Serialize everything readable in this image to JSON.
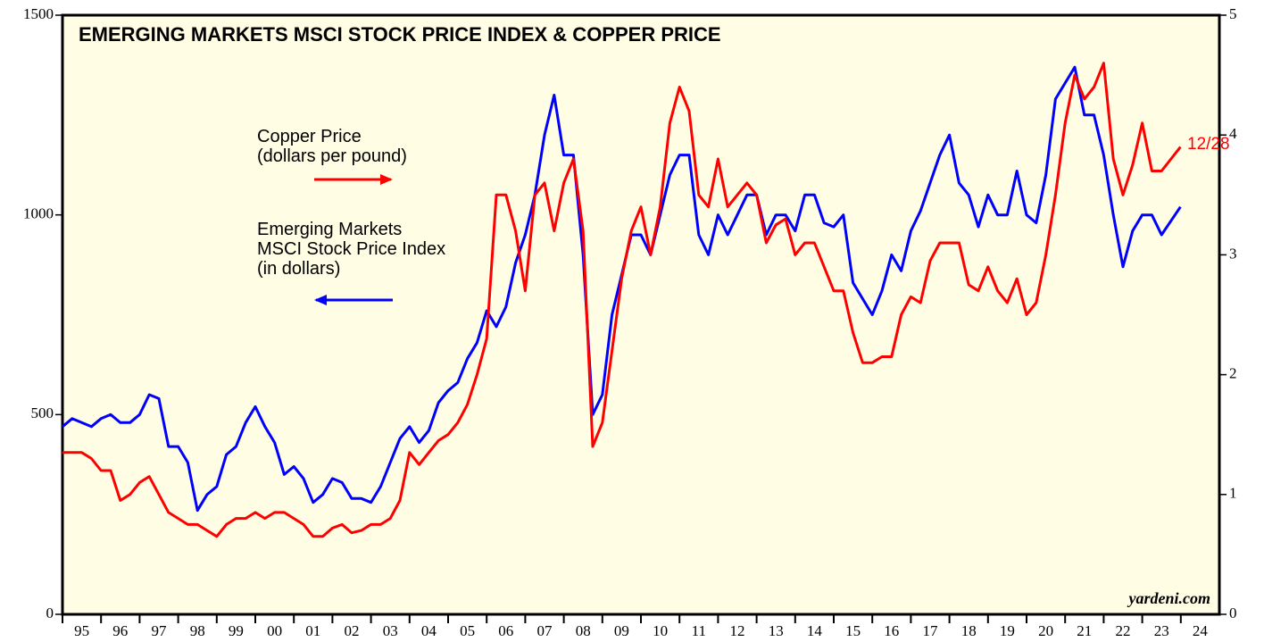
{
  "chart_data": {
    "type": "line",
    "title": "EMERGING MARKETS MSCI STOCK PRICE INDEX & COPPER PRICE",
    "source": "yardeni.com",
    "annotations": [
      "(in dollars)",
      "(dollars per pound)",
      "12/28"
    ],
    "x": [
      1995,
      1995.25,
      1995.5,
      1995.75,
      1996,
      1996.25,
      1996.5,
      1996.75,
      1997,
      1997.25,
      1997.5,
      1997.75,
      1998,
      1998.25,
      1998.5,
      1998.75,
      1999,
      1999.25,
      1999.5,
      1999.75,
      2000,
      2000.25,
      2000.5,
      2000.75,
      2001,
      2001.25,
      2001.5,
      2001.75,
      2002,
      2002.25,
      2002.5,
      2002.75,
      2003,
      2003.25,
      2003.5,
      2003.75,
      2004,
      2004.25,
      2004.5,
      2004.75,
      2005,
      2005.25,
      2005.5,
      2005.75,
      2006,
      2006.25,
      2006.5,
      2006.75,
      2007,
      2007.25,
      2007.5,
      2007.75,
      2008,
      2008.25,
      2008.5,
      2008.75,
      2009,
      2009.25,
      2009.5,
      2009.75,
      2010,
      2010.25,
      2010.5,
      2010.75,
      2011,
      2011.25,
      2011.5,
      2011.75,
      2012,
      2012.25,
      2012.5,
      2012.75,
      2013,
      2013.25,
      2013.5,
      2013.75,
      2014,
      2014.25,
      2014.5,
      2014.75,
      2015,
      2015.25,
      2015.5,
      2015.75,
      2016,
      2016.25,
      2016.5,
      2016.75,
      2017,
      2017.25,
      2017.5,
      2017.75,
      2018,
      2018.25,
      2018.5,
      2018.75,
      2019,
      2019.25,
      2019.5,
      2019.75,
      2020,
      2020.25,
      2020.5,
      2020.75,
      2021,
      2021.25,
      2021.5,
      2021.75,
      2022,
      2022.25,
      2022.5,
      2022.75,
      2023,
      2023.25,
      2023.5,
      2023.99
    ],
    "series": [
      {
        "name": "Emerging Markets\nMSCI Stock Price Index",
        "color": "#0000ff",
        "axis": "y",
        "values": [
          470,
          490,
          480,
          470,
          490,
          500,
          480,
          480,
          500,
          550,
          540,
          420,
          420,
          380,
          260,
          300,
          320,
          400,
          420,
          480,
          520,
          470,
          430,
          350,
          370,
          340,
          280,
          300,
          340,
          330,
          290,
          290,
          280,
          320,
          380,
          440,
          470,
          430,
          460,
          530,
          560,
          580,
          640,
          680,
          760,
          720,
          770,
          880,
          950,
          1050,
          1200,
          1300,
          1150,
          1150,
          900,
          500,
          550,
          750,
          850,
          950,
          950,
          900,
          1000,
          1100,
          1150,
          1150,
          950,
          900,
          1000,
          950,
          1000,
          1050,
          1050,
          950,
          1000,
          1000,
          960,
          1050,
          1050,
          980,
          970,
          1000,
          830,
          790,
          750,
          810,
          900,
          860,
          960,
          1010,
          1080,
          1150,
          1200,
          1080,
          1050,
          970,
          1050,
          1000,
          1000,
          1110,
          1000,
          980,
          1100,
          1290,
          1330,
          1370,
          1250,
          1250,
          1150,
          1000,
          870,
          960,
          1000,
          1000,
          950,
          1020
        ]
      },
      {
        "name": "Copper Price",
        "color": "#ff0000",
        "axis": "y2",
        "values": [
          1.35,
          1.35,
          1.35,
          1.3,
          1.2,
          1.2,
          0.95,
          1.0,
          1.1,
          1.15,
          1.0,
          0.85,
          0.8,
          0.75,
          0.75,
          0.7,
          0.65,
          0.75,
          0.8,
          0.8,
          0.85,
          0.8,
          0.85,
          0.85,
          0.8,
          0.75,
          0.65,
          0.65,
          0.72,
          0.75,
          0.68,
          0.7,
          0.75,
          0.75,
          0.8,
          0.95,
          1.35,
          1.25,
          1.35,
          1.45,
          1.5,
          1.6,
          1.75,
          2.0,
          2.3,
          3.5,
          3.5,
          3.2,
          2.7,
          3.5,
          3.6,
          3.2,
          3.6,
          3.8,
          3.2,
          1.4,
          1.6,
          2.2,
          2.8,
          3.2,
          3.4,
          3.0,
          3.4,
          4.1,
          4.4,
          4.2,
          3.5,
          3.4,
          3.8,
          3.4,
          3.5,
          3.6,
          3.5,
          3.1,
          3.25,
          3.3,
          3.0,
          3.1,
          3.1,
          2.9,
          2.7,
          2.7,
          2.35,
          2.1,
          2.1,
          2.15,
          2.15,
          2.5,
          2.65,
          2.6,
          2.95,
          3.1,
          3.1,
          3.1,
          2.75,
          2.7,
          2.9,
          2.7,
          2.6,
          2.8,
          2.5,
          2.6,
          3.0,
          3.5,
          4.1,
          4.5,
          4.3,
          4.4,
          4.6,
          3.8,
          3.5,
          3.75,
          4.1,
          3.7,
          3.7,
          3.9
        ]
      }
    ],
    "xlim": [
      1995,
      2025
    ],
    "xticks": [
      {
        "value": 1995,
        "label": "95"
      },
      {
        "value": 1996,
        "label": "96"
      },
      {
        "value": 1997,
        "label": "97"
      },
      {
        "value": 1998,
        "label": "98"
      },
      {
        "value": 1999,
        "label": "99"
      },
      {
        "value": 2000,
        "label": "00"
      },
      {
        "value": 2001,
        "label": "01"
      },
      {
        "value": 2002,
        "label": "02"
      },
      {
        "value": 2003,
        "label": "03"
      },
      {
        "value": 2004,
        "label": "04"
      },
      {
        "value": 2005,
        "label": "05"
      },
      {
        "value": 2006,
        "label": "06"
      },
      {
        "value": 2007,
        "label": "07"
      },
      {
        "value": 2008,
        "label": "08"
      },
      {
        "value": 2009,
        "label": "09"
      },
      {
        "value": 2010,
        "label": "10"
      },
      {
        "value": 2011,
        "label": "11"
      },
      {
        "value": 2012,
        "label": "12"
      },
      {
        "value": 2013,
        "label": "13"
      },
      {
        "value": 2014,
        "label": "14"
      },
      {
        "value": 2015,
        "label": "15"
      },
      {
        "value": 2016,
        "label": "16"
      },
      {
        "value": 2017,
        "label": "17"
      },
      {
        "value": 2018,
        "label": "18"
      },
      {
        "value": 2019,
        "label": "19"
      },
      {
        "value": 2020,
        "label": "20"
      },
      {
        "value": 2021,
        "label": "21"
      },
      {
        "value": 2022,
        "label": "22"
      },
      {
        "value": 2023,
        "label": "23"
      },
      {
        "value": 2024,
        "label": "24"
      }
    ],
    "ylim": [
      0,
      1500
    ],
    "yticks": [
      0,
      500,
      1000,
      1500
    ],
    "y2lim": [
      0,
      5
    ],
    "y2ticks": [
      0,
      1,
      2,
      3,
      4,
      5
    ],
    "background": "#fffde4"
  }
}
